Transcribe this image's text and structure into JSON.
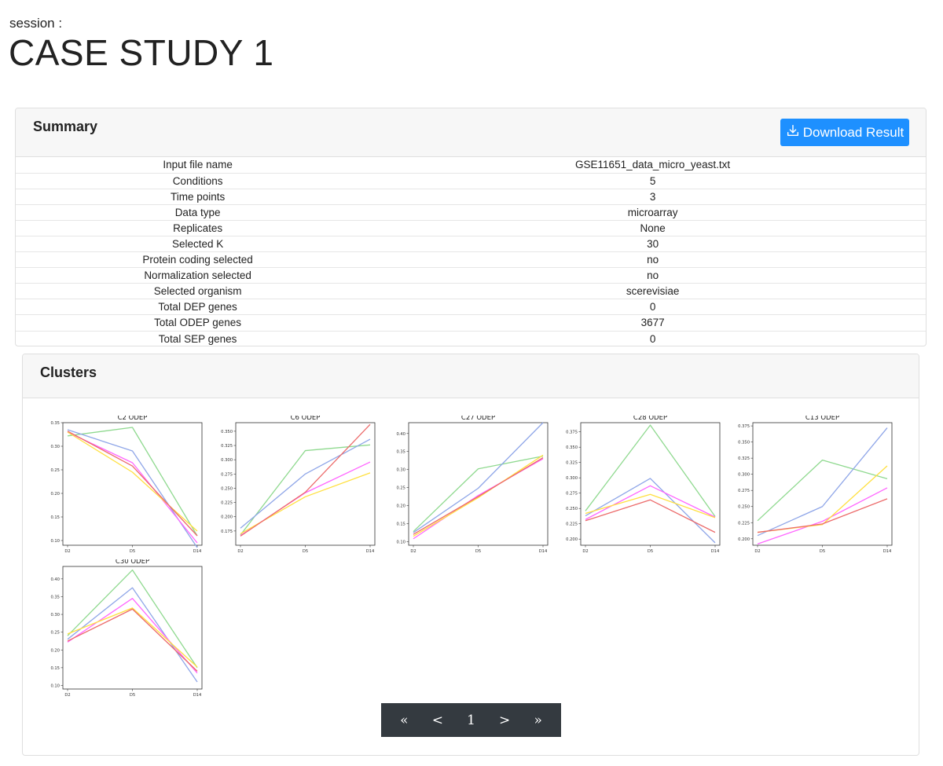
{
  "header": {
    "session_label": "session :",
    "title": "CASE STUDY 1"
  },
  "summary": {
    "title": "Summary",
    "download_label": "Download Result",
    "rows": [
      {
        "key": "Input file name",
        "value": "GSE11651_data_micro_yeast.txt"
      },
      {
        "key": "Conditions",
        "value": "5"
      },
      {
        "key": "Time points",
        "value": "3"
      },
      {
        "key": "Data type",
        "value": "microarray"
      },
      {
        "key": "Replicates",
        "value": "None"
      },
      {
        "key": "Selected K",
        "value": "30"
      },
      {
        "key": "Protein coding selected",
        "value": "no"
      },
      {
        "key": "Normalization selected",
        "value": "no"
      },
      {
        "key": "Selected organism",
        "value": "scerevisiae"
      },
      {
        "key": "Total DEP genes",
        "value": "0"
      },
      {
        "key": "Total ODEP genes",
        "value": "3677"
      },
      {
        "key": "Total SEP genes",
        "value": "0"
      }
    ]
  },
  "clusters": {
    "title": "Clusters",
    "series_colors": [
      "#8fd98f",
      "#8fa6e8",
      "#ff66ff",
      "#ffe040",
      "#ec6b6b"
    ],
    "pagination": {
      "first": "«",
      "prev": "<",
      "page": "1",
      "next": ">",
      "last": "»"
    }
  },
  "chart_data": [
    {
      "type": "line",
      "title": "C2 ODEP",
      "x": [
        "D2",
        "D5",
        "D14"
      ],
      "ylim": [
        0.09,
        0.35
      ],
      "yticks": [
        "0.10",
        "0.15",
        "0.20",
        "0.25",
        "0.30",
        "0.35"
      ],
      "ytick_values": [
        0.1,
        0.15,
        0.2,
        0.25,
        0.3,
        0.35
      ],
      "series": [
        {
          "values": [
            0.322,
            0.34,
            0.11
          ]
        },
        {
          "values": [
            0.335,
            0.29,
            0.085
          ]
        },
        {
          "values": [
            0.33,
            0.265,
            0.095
          ]
        },
        {
          "values": [
            0.33,
            0.245,
            0.12
          ]
        },
        {
          "values": [
            0.332,
            0.258,
            0.11
          ]
        }
      ]
    },
    {
      "type": "line",
      "title": "C6 ODEP",
      "x": [
        "D2",
        "D5",
        "D14"
      ],
      "ylim": [
        0.15,
        0.365
      ],
      "yticks": [
        "0.175",
        "0.200",
        "0.225",
        "0.250",
        "0.275",
        "0.300",
        "0.325",
        "0.350"
      ],
      "ytick_values": [
        0.175,
        0.2,
        0.225,
        0.25,
        0.275,
        0.3,
        0.325,
        0.35
      ],
      "series": [
        {
          "values": [
            0.168,
            0.316,
            0.326
          ]
        },
        {
          "values": [
            0.18,
            0.275,
            0.336
          ]
        },
        {
          "values": [
            0.167,
            0.242,
            0.296
          ]
        },
        {
          "values": [
            0.17,
            0.235,
            0.277
          ]
        },
        {
          "values": [
            0.166,
            0.243,
            0.362
          ]
        }
      ]
    },
    {
      "type": "line",
      "title": "C27 ODEP",
      "x": [
        "D2",
        "D5",
        "D14"
      ],
      "ylim": [
        0.09,
        0.43
      ],
      "yticks": [
        "0.10",
        "0.15",
        "0.20",
        "0.25",
        "0.30",
        "0.35",
        "0.40"
      ],
      "ytick_values": [
        0.1,
        0.15,
        0.2,
        0.25,
        0.3,
        0.35,
        0.4
      ],
      "series": [
        {
          "values": [
            0.128,
            0.302,
            0.337
          ]
        },
        {
          "values": [
            0.125,
            0.248,
            0.43
          ]
        },
        {
          "values": [
            0.108,
            0.228,
            0.33
          ]
        },
        {
          "values": [
            0.115,
            0.222,
            0.34
          ]
        },
        {
          "values": [
            0.12,
            0.225,
            0.333
          ]
        }
      ]
    },
    {
      "type": "line",
      "title": "C28 ODEP",
      "x": [
        "D2",
        "D5",
        "D14"
      ],
      "ylim": [
        0.19,
        0.39
      ],
      "yticks": [
        "0.200",
        "0.225",
        "0.250",
        "0.275",
        "0.300",
        "0.325",
        "0.350",
        "0.375"
      ],
      "ytick_values": [
        0.2,
        0.225,
        0.25,
        0.275,
        0.3,
        0.325,
        0.35,
        0.375
      ],
      "series": [
        {
          "values": [
            0.246,
            0.386,
            0.237
          ]
        },
        {
          "values": [
            0.238,
            0.299,
            0.194
          ]
        },
        {
          "values": [
            0.232,
            0.287,
            0.236
          ]
        },
        {
          "values": [
            0.242,
            0.273,
            0.235
          ]
        },
        {
          "values": [
            0.23,
            0.264,
            0.211
          ]
        }
      ]
    },
    {
      "type": "line",
      "title": "C13 ODEP",
      "x": [
        "D2",
        "D5",
        "D14"
      ],
      "ylim": [
        0.19,
        0.38
      ],
      "yticks": [
        "0.200",
        "0.225",
        "0.250",
        "0.275",
        "0.300",
        "0.325",
        "0.350",
        "0.375"
      ],
      "ytick_values": [
        0.2,
        0.225,
        0.25,
        0.275,
        0.3,
        0.325,
        0.35,
        0.375
      ],
      "series": [
        {
          "values": [
            0.228,
            0.322,
            0.293
          ]
        },
        {
          "values": [
            0.205,
            0.25,
            0.372
          ]
        },
        {
          "values": [
            0.192,
            0.227,
            0.279
          ]
        },
        {
          "values": [
            0.21,
            0.222,
            0.313
          ]
        },
        {
          "values": [
            0.21,
            0.223,
            0.262
          ]
        }
      ]
    },
    {
      "type": "line",
      "title": "C30 ODEP",
      "x": [
        "D2",
        "D5",
        "D14"
      ],
      "ylim": [
        0.09,
        0.435
      ],
      "yticks": [
        "0.10",
        "0.15",
        "0.20",
        "0.25",
        "0.30",
        "0.35",
        "0.40"
      ],
      "ytick_values": [
        0.1,
        0.15,
        0.2,
        0.25,
        0.3,
        0.35,
        0.4
      ],
      "series": [
        {
          "values": [
            0.24,
            0.425,
            0.15
          ]
        },
        {
          "values": [
            0.23,
            0.375,
            0.11
          ]
        },
        {
          "values": [
            0.222,
            0.345,
            0.135
          ]
        },
        {
          "values": [
            0.245,
            0.318,
            0.152
          ]
        },
        {
          "values": [
            0.225,
            0.315,
            0.14
          ]
        }
      ]
    }
  ]
}
